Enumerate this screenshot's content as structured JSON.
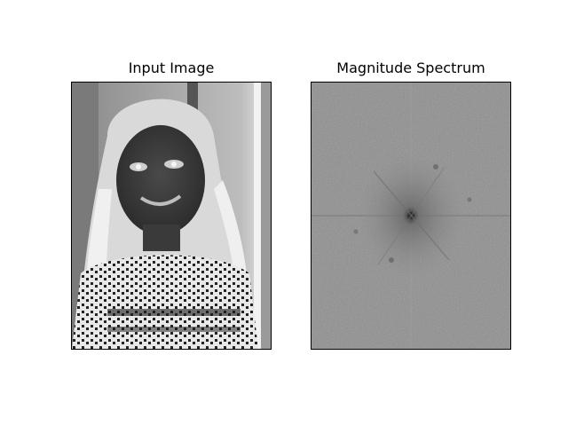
{
  "figure": {
    "background": "#ffffff",
    "panels": [
      {
        "title": "Input Image",
        "content": "grayscale photo with inverted tones: a smiling girl with long light hair wearing a patterned sweater, seen as a negative"
      },
      {
        "title": "Magnitude Spectrum",
        "content": "2D Fourier magnitude spectrum, medium gray noisy field with a bright center and faint horizontal/vertical lines"
      }
    ]
  }
}
